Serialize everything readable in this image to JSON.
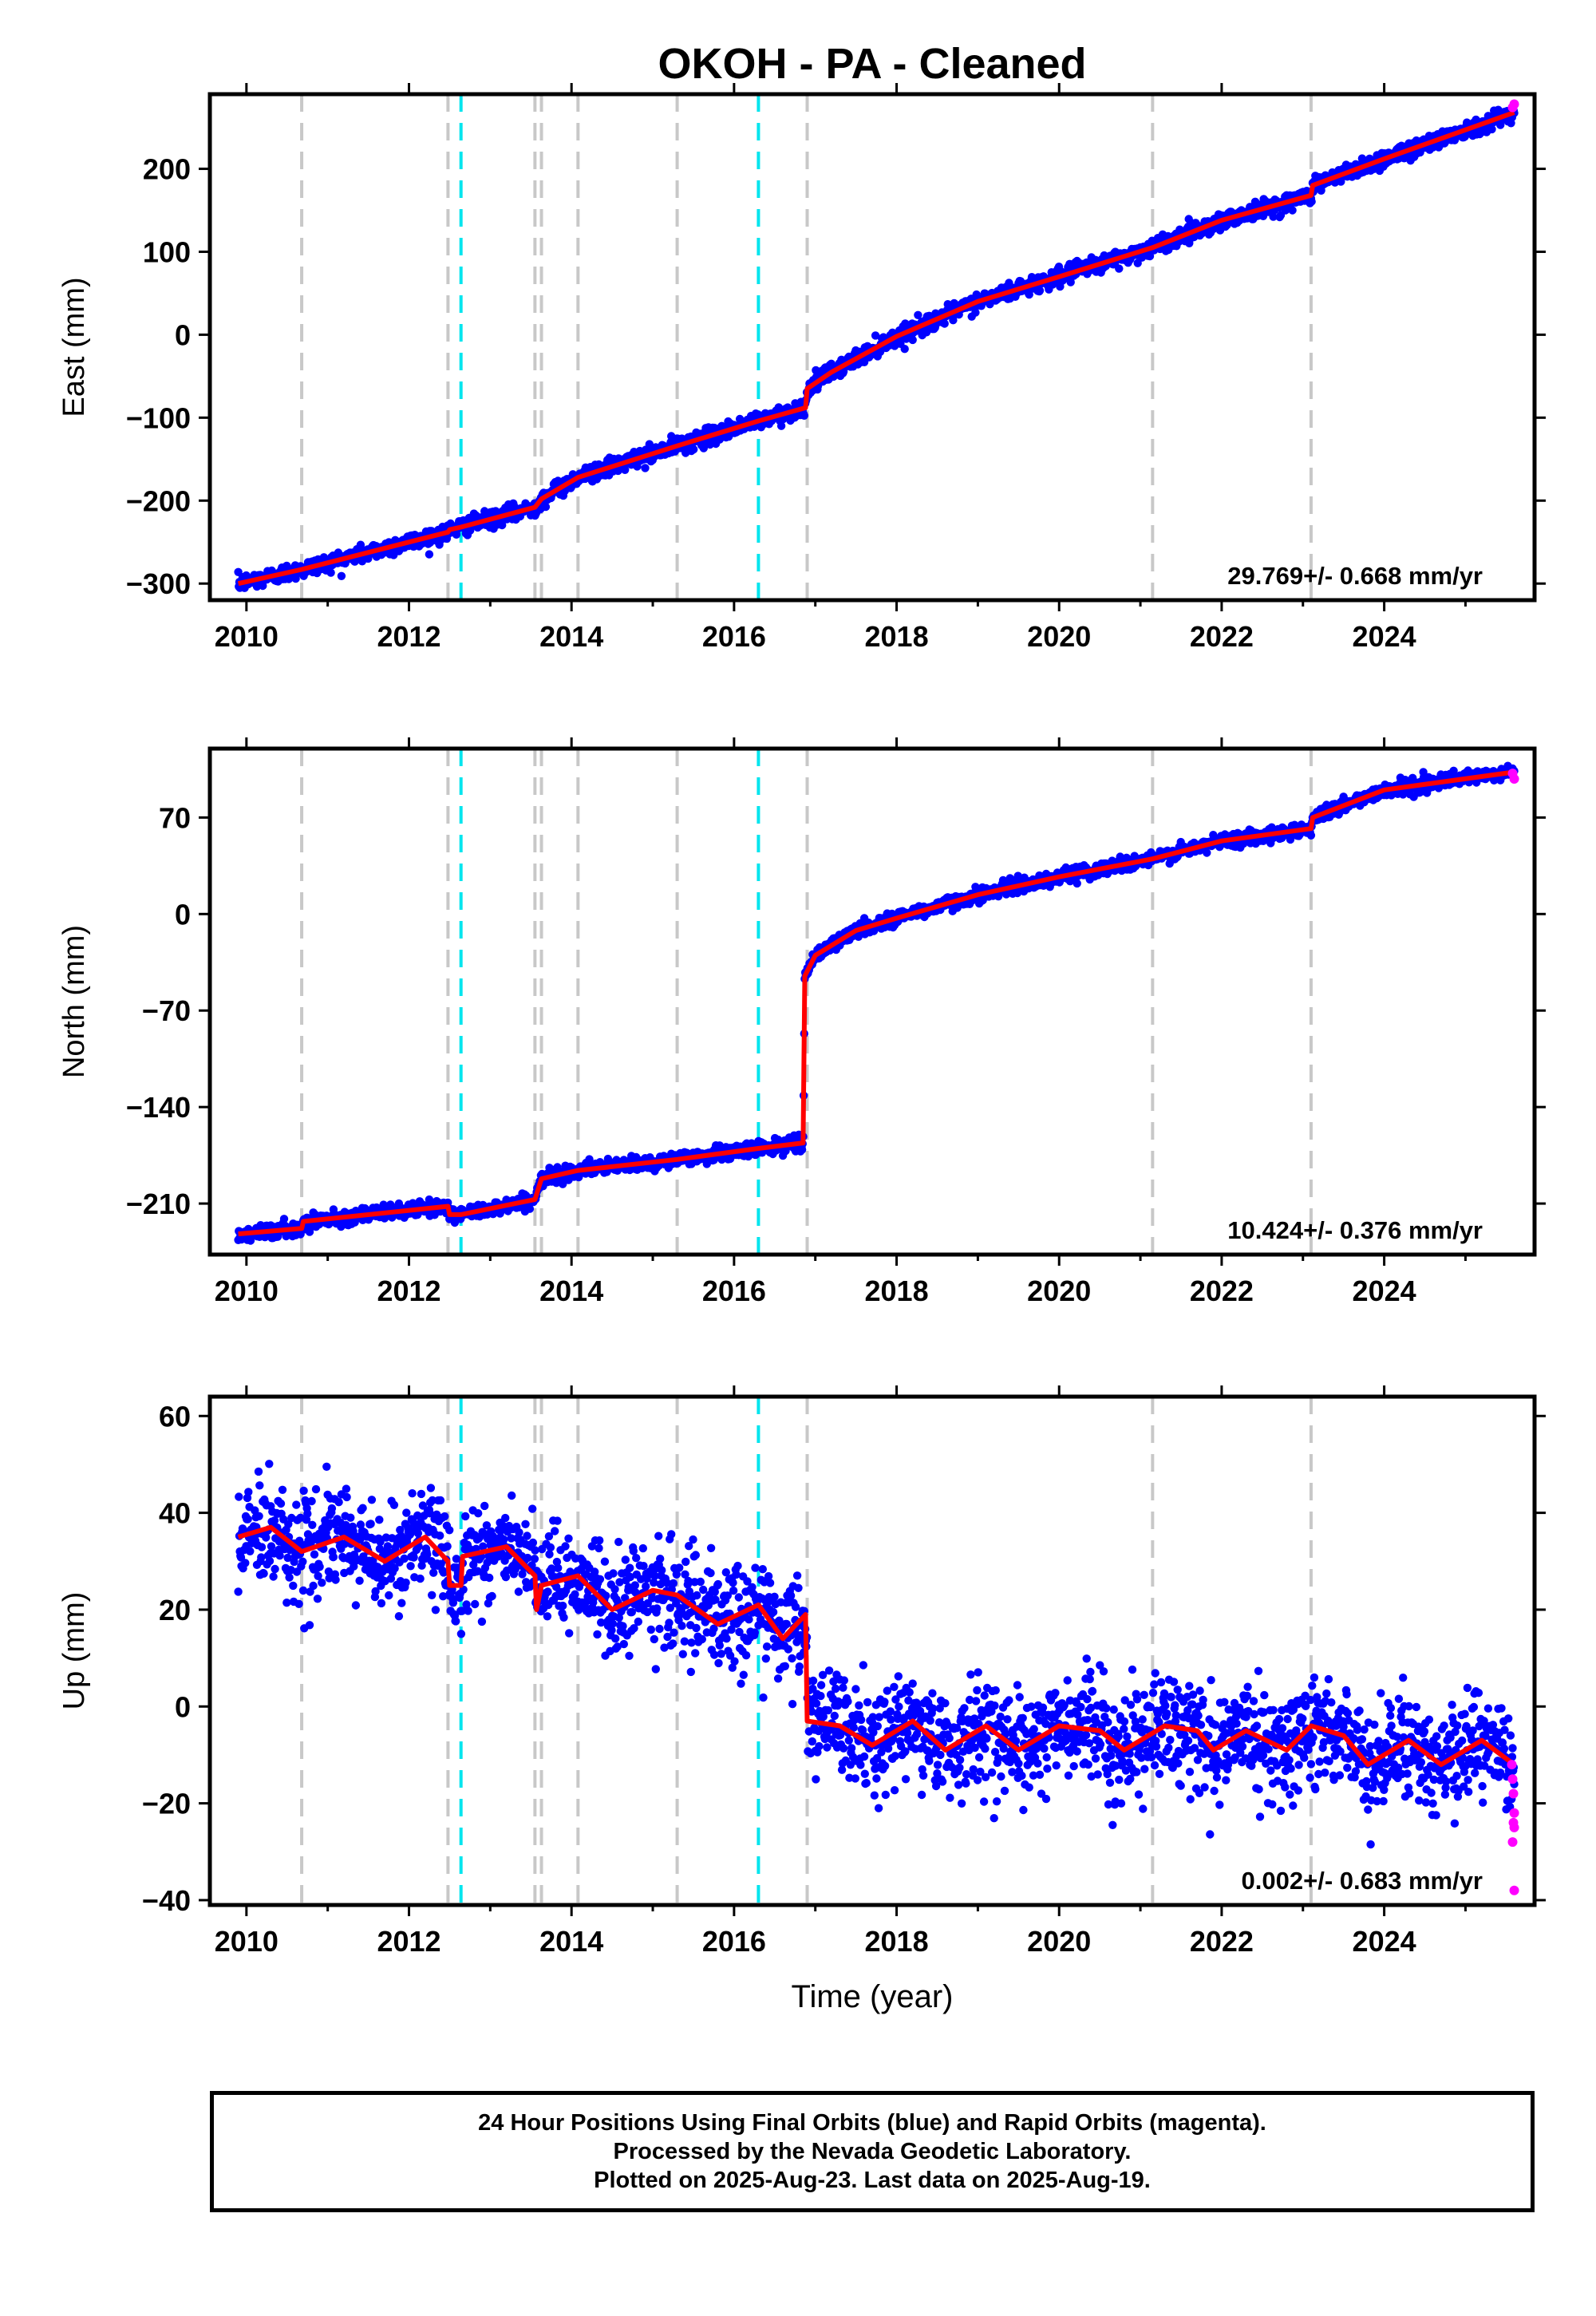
{
  "title": "OKOH  - PA - Cleaned",
  "x_label": "Time (year)",
  "colors": {
    "final": "#0000ff",
    "rapid": "#ff00ff",
    "model": "#ff0000",
    "grey_lines": "#c8c8c8",
    "cyan_lines": "#00e5ee"
  },
  "footer": {
    "line1": "24 Hour Positions Using Final Orbits (blue) and Rapid Orbits (magenta).",
    "line2": "Processed by the Nevada Geodetic Laboratory.",
    "line3": "Plotted on 2025-Aug-23. Last data on 2025-Aug-19."
  },
  "chart_data": [
    {
      "type": "scatter",
      "panel": "east",
      "ylabel": "East (mm)",
      "xlim": [
        2009.55,
        2025.85
      ],
      "ylim": [
        -320,
        290
      ],
      "x_ticks": [
        2010,
        2012,
        2014,
        2016,
        2018,
        2020,
        2022,
        2024
      ],
      "y_ticks": [
        -300,
        -200,
        -100,
        0,
        100,
        200
      ],
      "rate_text": "29.769+/- 0.668 mm/yr",
      "grey_dashed_x": [
        2010.68,
        2012.48,
        2013.55,
        2013.63,
        2014.08,
        2015.3,
        2016.9,
        2021.15,
        2023.1
      ],
      "cyan_dashed_x": [
        2012.64,
        2016.3
      ],
      "model_points": [
        [
          2009.9,
          -300
        ],
        [
          2010.68,
          -283
        ],
        [
          2012.48,
          -238
        ],
        [
          2012.5,
          -235
        ],
        [
          2012.64,
          -232
        ],
        [
          2013.55,
          -208
        ],
        [
          2013.63,
          -198
        ],
        [
          2014.08,
          -172
        ],
        [
          2015.3,
          -134
        ],
        [
          2016.3,
          -104
        ],
        [
          2016.88,
          -88
        ],
        [
          2016.9,
          -65
        ],
        [
          2017.2,
          -45
        ],
        [
          2018,
          -2
        ],
        [
          2019,
          40
        ],
        [
          2020,
          70
        ],
        [
          2021.15,
          105
        ],
        [
          2022,
          138
        ],
        [
          2023.1,
          168
        ],
        [
          2023.12,
          180
        ],
        [
          2024,
          212
        ],
        [
          2025.6,
          268
        ]
      ],
      "scatter_std": 5,
      "rapid_points": [
        [
          2025.58,
          274
        ],
        [
          2025.6,
          278
        ]
      ]
    },
    {
      "type": "scatter",
      "panel": "north",
      "ylabel": "North (mm)",
      "xlim": [
        2009.55,
        2025.85
      ],
      "ylim": [
        -247,
        120
      ],
      "x_ticks": [
        2010,
        2012,
        2014,
        2016,
        2018,
        2020,
        2022,
        2024
      ],
      "y_ticks": [
        -210,
        -140,
        -70,
        0,
        70
      ],
      "rate_text": "10.424+/- 0.376 mm/yr",
      "grey_dashed_x": [
        2010.68,
        2012.48,
        2013.55,
        2013.63,
        2014.08,
        2015.3,
        2016.9,
        2021.15,
        2023.1
      ],
      "cyan_dashed_x": [
        2012.64,
        2016.3
      ],
      "model_points": [
        [
          2009.9,
          -232
        ],
        [
          2010.68,
          -228
        ],
        [
          2010.7,
          -223
        ],
        [
          2012.48,
          -212
        ],
        [
          2012.5,
          -218
        ],
        [
          2012.64,
          -218
        ],
        [
          2013.55,
          -207
        ],
        [
          2013.63,
          -192
        ],
        [
          2014.08,
          -186
        ],
        [
          2015.3,
          -178
        ],
        [
          2016.3,
          -170
        ],
        [
          2016.85,
          -166
        ],
        [
          2016.87,
          -45
        ],
        [
          2017,
          -30
        ],
        [
          2017.5,
          -12
        ],
        [
          2018,
          -3
        ],
        [
          2019,
          14
        ],
        [
          2020,
          27
        ],
        [
          2021.15,
          40
        ],
        [
          2022,
          53
        ],
        [
          2023.1,
          62
        ],
        [
          2023.12,
          70
        ],
        [
          2024,
          90
        ],
        [
          2025.6,
          103
        ]
      ],
      "scatter_std": 2.5,
      "rapid_points": [
        [
          2025.58,
          102
        ],
        [
          2025.6,
          98
        ]
      ]
    },
    {
      "type": "scatter",
      "panel": "up",
      "ylabel": "Up (mm)",
      "xlim": [
        2009.55,
        2025.85
      ],
      "ylim": [
        -41,
        64
      ],
      "x_ticks": [
        2010,
        2012,
        2014,
        2016,
        2018,
        2020,
        2022,
        2024
      ],
      "y_ticks": [
        -40,
        -20,
        0,
        20,
        40,
        60
      ],
      "rate_text": "0.002+/- 0.683 mm/yr",
      "grey_dashed_x": [
        2010.68,
        2012.48,
        2013.55,
        2013.63,
        2014.08,
        2015.3,
        2016.9,
        2021.15,
        2023.1
      ],
      "cyan_dashed_x": [
        2012.64,
        2016.3
      ],
      "model_points": [
        [
          2009.9,
          35
        ],
        [
          2010.3,
          37
        ],
        [
          2010.68,
          32
        ],
        [
          2011.2,
          35
        ],
        [
          2011.7,
          30
        ],
        [
          2012.2,
          35
        ],
        [
          2012.48,
          30
        ],
        [
          2012.5,
          25
        ],
        [
          2012.64,
          25
        ],
        [
          2012.66,
          31
        ],
        [
          2013.2,
          33
        ],
        [
          2013.55,
          27
        ],
        [
          2013.57,
          20
        ],
        [
          2013.63,
          25
        ],
        [
          2014.08,
          27
        ],
        [
          2014.5,
          20
        ],
        [
          2015.0,
          24
        ],
        [
          2015.3,
          23
        ],
        [
          2015.8,
          17
        ],
        [
          2016.3,
          21
        ],
        [
          2016.6,
          14
        ],
        [
          2016.88,
          19
        ],
        [
          2016.9,
          -3
        ],
        [
          2017.3,
          -4
        ],
        [
          2017.7,
          -8
        ],
        [
          2018.2,
          -3
        ],
        [
          2018.6,
          -9
        ],
        [
          2019.1,
          -4
        ],
        [
          2019.5,
          -9
        ],
        [
          2020,
          -4
        ],
        [
          2020.5,
          -5
        ],
        [
          2020.8,
          -9
        ],
        [
          2021.3,
          -4
        ],
        [
          2021.7,
          -5
        ],
        [
          2021.9,
          -9
        ],
        [
          2022.3,
          -5
        ],
        [
          2022.8,
          -9
        ],
        [
          2023.1,
          -4
        ],
        [
          2023.5,
          -6
        ],
        [
          2023.8,
          -12
        ],
        [
          2024.3,
          -7
        ],
        [
          2024.7,
          -12
        ],
        [
          2025.2,
          -7
        ],
        [
          2025.6,
          -12
        ]
      ],
      "scatter_std": 5.2,
      "rapid_points": [
        [
          2025.57,
          -12
        ],
        [
          2025.58,
          -15
        ],
        [
          2025.59,
          -18
        ],
        [
          2025.6,
          -22
        ],
        [
          2025.59,
          -24
        ],
        [
          2025.6,
          -25
        ],
        [
          2025.58,
          -28
        ],
        [
          2025.6,
          -38
        ]
      ]
    }
  ]
}
